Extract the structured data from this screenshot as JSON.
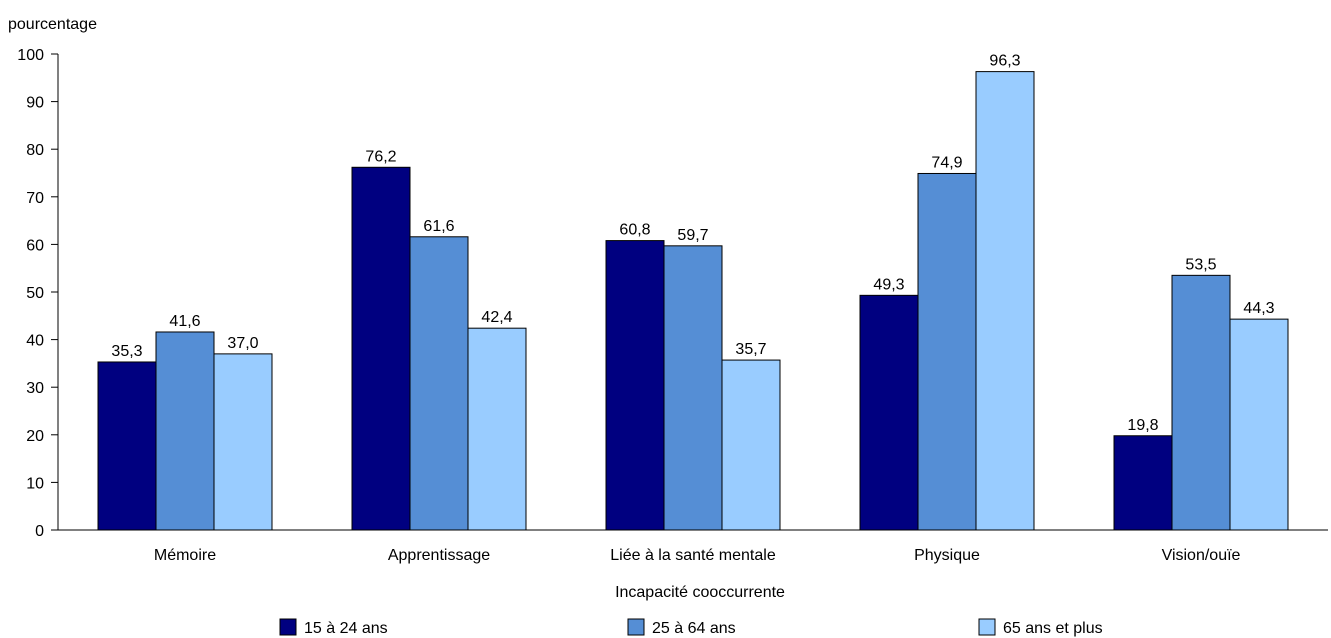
{
  "chart_data": {
    "type": "bar",
    "ylabel": "pourcentage",
    "xlabel": "Incapacité cooccurrente",
    "ylim": [
      0,
      100
    ],
    "yticks": [
      0,
      10,
      20,
      30,
      40,
      50,
      60,
      70,
      80,
      90,
      100
    ],
    "grid": false,
    "legend_position": "bottom",
    "decimal_separator": ",",
    "categories": [
      "Mémoire",
      "Apprentissage",
      "Liée à la santé mentale",
      "Physique",
      "Vision/ouïe"
    ],
    "series": [
      {
        "name": "15 à 24 ans",
        "color": "#000080",
        "values": [
          35.3,
          76.2,
          60.8,
          49.3,
          19.8
        ]
      },
      {
        "name": "25 à 64 ans",
        "color": "#558ed5",
        "values": [
          41.6,
          61.6,
          59.7,
          74.9,
          53.5
        ]
      },
      {
        "name": "65 ans et plus",
        "color": "#99ccff",
        "values": [
          37.0,
          42.4,
          35.7,
          96.3,
          44.3
        ]
      }
    ]
  }
}
